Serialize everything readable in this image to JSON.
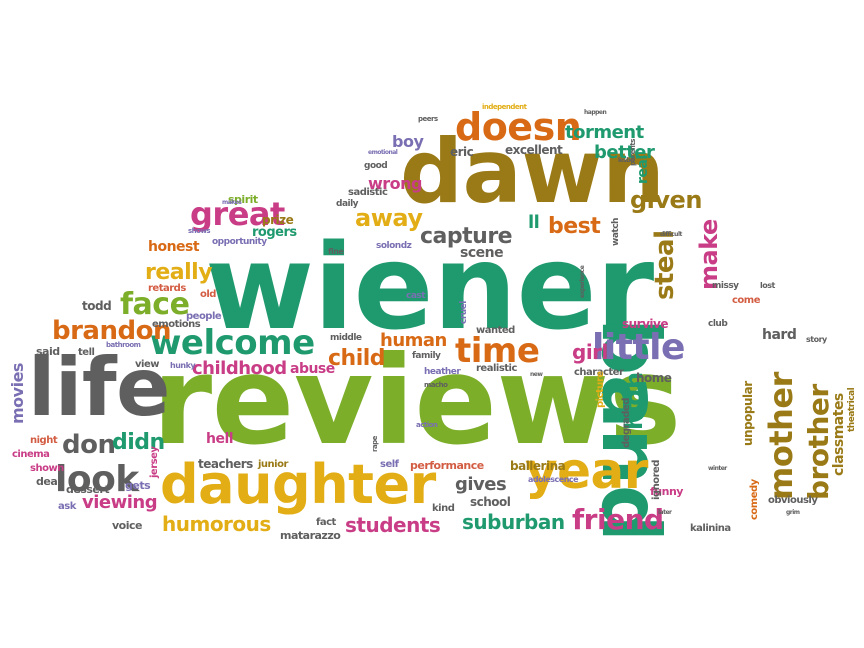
{
  "words": {
    "wiener": "wiener",
    "reviews": "reviews",
    "dawn": "dawn",
    "band": "band",
    "life": "life",
    "daughter": "daughter",
    "year": "year",
    "welcome": "welcome",
    "doesn": "doesn",
    "great": "great",
    "look": "look",
    "time": "time",
    "little": "little",
    "mother": "mother",
    "brother": "brother",
    "friend": "friend",
    "face": "face",
    "brandon": "brandon",
    "capture": "capture",
    "steal": "steal",
    "high": "high",
    "away": "away",
    "best": "best",
    "given": "given",
    "make": "make",
    "really": "really",
    "childhood": "childhood",
    "child": "child",
    "human": "human",
    "girl": "girl",
    "don": "don",
    "didn": "didn",
    "gives": "gives",
    "suburban": "suburban",
    "students": "students",
    "humorous": "humorous",
    "viewing": "viewing",
    "movies": "movies",
    "classmates": "classmates",
    "torment": "torment",
    "better": "better",
    "wrong": "wrong",
    "boy": "boy",
    "excellent": "excellent",
    "eric": "eric",
    "real": "real",
    "honest": "honest",
    "rogers": "rogers",
    "prize": "prize",
    "spirit": "spirit",
    "opportunity": "opportunity",
    "retards": "retards",
    "todd": "todd",
    "emotions": "emotions",
    "people": "people",
    "old": "old",
    "said": "said",
    "tell": "tell",
    "bathroom": "bathroom",
    "abuse": "abuse",
    "hunky": "hunky",
    "view": "view",
    "cinema": "cinema",
    "night": "night",
    "shown": "shown",
    "deal": "deal",
    "ask": "ask",
    "dessert": "dessert",
    "hell": "hell",
    "teachers": "teachers",
    "junior": "junior",
    "gets": "gets",
    "jersey": "jersey",
    "voice": "voice",
    "fact": "fact",
    "matarazzo": "matarazzo",
    "self": "self",
    "performance": "performance",
    "school": "school",
    "ballerina": "ballerina",
    "adolescence": "adolescence",
    "kind": "kind",
    "funny": "funny",
    "kalinina": "kalinina",
    "hard": "hard",
    "home": "home",
    "character": "character",
    "realistic": "realistic",
    "heather": "heather",
    "family": "family",
    "wanted": "wanted",
    "middle": "middle",
    "scene": "scene",
    "solondz": "solondz",
    "survive": "survive",
    "picture": "picture",
    "ignored": "ignored",
    "degraded": "degraded",
    "unpopular": "unpopular",
    "comedy": "comedy",
    "obviously": "obviously",
    "theatrical": "theatrical",
    "story": "story",
    "club": "club",
    "come": "come",
    "missy": "missy",
    "lost": "lost",
    "watch": "watch",
    "difficult": "difficult",
    "experience": "experience",
    "cruel": "cruel",
    "cast": "cast",
    "sadistic": "sadistic",
    "daily": "daily",
    "good": "good",
    "emotional": "emotional",
    "fine": "fine",
    "peers": "peers",
    "independent": "independent",
    "happen": "happen",
    "parents": "parents",
    "lesbo": "lesbo",
    "makes": "makes",
    "shows": "shows",
    "macho": "macho",
    "action": "action",
    "rape": "rape",
    "new": "new",
    "ll": "ll",
    "later": "later",
    "winter": "winter",
    "grim": "grim"
  }
}
